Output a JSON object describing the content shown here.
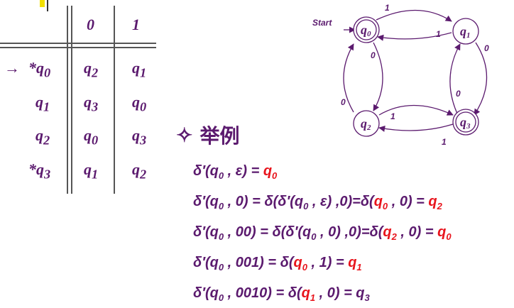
{
  "table": {
    "header": [
      "0",
      "1"
    ],
    "rows": [
      {
        "marker": "→",
        "state": "*q",
        "state_sub": "0",
        "on0": "q",
        "on0_sub": "2",
        "on1": "q",
        "on1_sub": "1"
      },
      {
        "marker": "",
        "state": "q",
        "state_sub": "1",
        "on0": "q",
        "on0_sub": "3",
        "on1": "q",
        "on1_sub": "0"
      },
      {
        "marker": "",
        "state": "q",
        "state_sub": "2",
        "on0": "q",
        "on0_sub": "0",
        "on1": "q",
        "on1_sub": "3"
      },
      {
        "marker": "",
        "state": "*q",
        "state_sub": "3",
        "on0": "q",
        "on0_sub": "1",
        "on1": "q",
        "on1_sub": "2"
      }
    ]
  },
  "diagram": {
    "start_label": "Start",
    "states": [
      {
        "label": "q",
        "sub": "0",
        "accepting": true
      },
      {
        "label": "q",
        "sub": "1",
        "accepting": false
      },
      {
        "label": "q",
        "sub": "2",
        "accepting": false
      },
      {
        "label": "q",
        "sub": "3",
        "accepting": true
      }
    ],
    "edge_labels": {
      "q0_q1": "1",
      "q1_q0": "1",
      "q1_q3": "0",
      "q3_q1": "0",
      "q2_q3": "1",
      "q3_q2": "1",
      "q0_q2": "0",
      "q2_q0": "0"
    }
  },
  "example": {
    "symbol": "✧",
    "title": "举例"
  },
  "colors": {
    "text": "#5b1a6e",
    "highlight": "#e8141c"
  }
}
